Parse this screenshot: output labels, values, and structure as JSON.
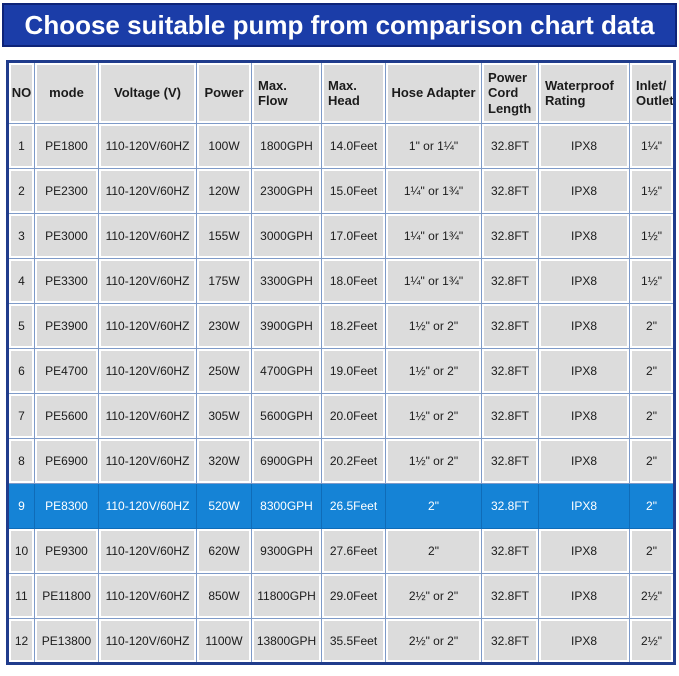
{
  "banner": {
    "title": "Choose suitable pump from comparison chart data"
  },
  "colors": {
    "banner_bg": "#1b3da8",
    "banner_border": "#0e2478",
    "outer_border": "#203c8c",
    "grid_line": "#7e9ac8",
    "cell_bg": "#dcdcdc",
    "highlight_bg": "#1583d6",
    "highlight_grid": "#0f6cb8",
    "text_color": "#1b1b1b"
  },
  "table": {
    "columns": [
      {
        "key": "no",
        "label": "NO",
        "align": "center"
      },
      {
        "key": "mode",
        "label": "mode",
        "align": "center"
      },
      {
        "key": "voltage",
        "label": "Voltage (V)",
        "align": "center"
      },
      {
        "key": "power",
        "label": "Power",
        "align": "center"
      },
      {
        "key": "max_flow",
        "label": "Max. Flow",
        "align": "left"
      },
      {
        "key": "max_head",
        "label": "Max. Head",
        "align": "left"
      },
      {
        "key": "hose_adapter",
        "label": "Hose Adapter",
        "align": "center"
      },
      {
        "key": "power_cord_length",
        "label": "Power Cord Length",
        "align": "left"
      },
      {
        "key": "waterproof_rating",
        "label": "Waterproof Rating",
        "align": "left"
      },
      {
        "key": "inlet_outlet",
        "label": "Inlet/ Outlet",
        "align": "left"
      }
    ],
    "highlighted_row_no": "9",
    "rows": [
      [
        "1",
        "PE1800",
        "110-120V/60HZ",
        "100W",
        "1800GPH",
        "14.0Feet",
        "1\" or 1¼\"",
        "32.8FT",
        "IPX8",
        "1¼\""
      ],
      [
        "2",
        "PE2300",
        "110-120V/60HZ",
        "120W",
        "2300GPH",
        "15.0Feet",
        "1¼\" or 1¾\"",
        "32.8FT",
        "IPX8",
        "1½\""
      ],
      [
        "3",
        "PE3000",
        "110-120V/60HZ",
        "155W",
        "3000GPH",
        "17.0Feet",
        "1¼\" or 1¾\"",
        "32.8FT",
        "IPX8",
        "1½\""
      ],
      [
        "4",
        "PE3300",
        "110-120V/60HZ",
        "175W",
        "3300GPH",
        "18.0Feet",
        "1¼\" or 1¾\"",
        "32.8FT",
        "IPX8",
        "1½\""
      ],
      [
        "5",
        "PE3900",
        "110-120V/60HZ",
        "230W",
        "3900GPH",
        "18.2Feet",
        "1½\" or 2\"",
        "32.8FT",
        "IPX8",
        "2\""
      ],
      [
        "6",
        "PE4700",
        "110-120V/60HZ",
        "250W",
        "4700GPH",
        "19.0Feet",
        "1½\" or 2\"",
        "32.8FT",
        "IPX8",
        "2\""
      ],
      [
        "7",
        "PE5600",
        "110-120V/60HZ",
        "305W",
        "5600GPH",
        "20.0Feet",
        "1½\" or 2\"",
        "32.8FT",
        "IPX8",
        "2\""
      ],
      [
        "8",
        "PE6900",
        "110-120V/60HZ",
        "320W",
        "6900GPH",
        "20.2Feet",
        "1½\" or 2\"",
        "32.8FT",
        "IPX8",
        "2\""
      ],
      [
        "9",
        "PE8300",
        "110-120V/60HZ",
        "520W",
        "8300GPH",
        "26.5Feet",
        "2\"",
        "32.8FT",
        "IPX8",
        "2\""
      ],
      [
        "10",
        "PE9300",
        "110-120V/60HZ",
        "620W",
        "9300GPH",
        "27.6Feet",
        "2\"",
        "32.8FT",
        "IPX8",
        "2\""
      ],
      [
        "11",
        "PE11800",
        "110-120V/60HZ",
        "850W",
        "11800GPH",
        "29.0Feet",
        "2½\" or 2\"",
        "32.8FT",
        "IPX8",
        "2½\""
      ],
      [
        "12",
        "PE13800",
        "110-120V/60HZ",
        "1100W",
        "13800GPH",
        "35.5Feet",
        "2½\" or 2\"",
        "32.8FT",
        "IPX8",
        "2½\""
      ]
    ]
  }
}
